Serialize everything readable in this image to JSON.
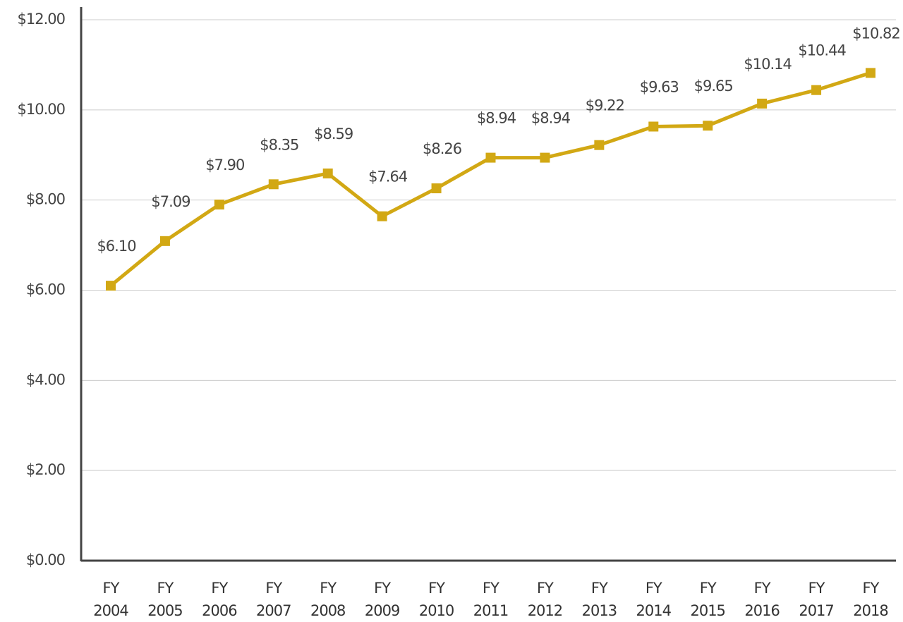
{
  "chart_data": {
    "type": "line",
    "categories": [
      "FY 2004",
      "FY 2005",
      "FY 2006",
      "FY 2007",
      "FY 2008",
      "FY 2009",
      "FY 2010",
      "FY 2011",
      "FY 2012",
      "FY 2013",
      "FY 2014",
      "FY 2015",
      "FY 2016",
      "FY 2017",
      "FY 2018"
    ],
    "series": [
      {
        "color": "#d2a814",
        "values": [
          6.1,
          7.09,
          7.9,
          8.35,
          8.59,
          7.64,
          8.26,
          8.94,
          8.94,
          9.22,
          9.63,
          9.65,
          10.14,
          10.44,
          10.82
        ],
        "value_labels": [
          "$6.10",
          "$7.09",
          "$7.90",
          "$8.35",
          "$8.59",
          "$7.64",
          "$8.26",
          "$8.94",
          "$8.94",
          "$9.22",
          "$9.63",
          "$9.65",
          "$10.14",
          "$10.44",
          "$10.82"
        ]
      }
    ],
    "ylim": [
      0,
      12
    ],
    "yticks": [
      {
        "value": 0,
        "label": "$0.00"
      },
      {
        "value": 2,
        "label": "$2.00"
      },
      {
        "value": 4,
        "label": "$4.00"
      },
      {
        "value": 6,
        "label": "$6.00"
      },
      {
        "value": 8,
        "label": "$8.00"
      },
      {
        "value": 10,
        "label": "$10.00"
      },
      {
        "value": 12,
        "label": "$12.00"
      }
    ],
    "grid": true
  }
}
